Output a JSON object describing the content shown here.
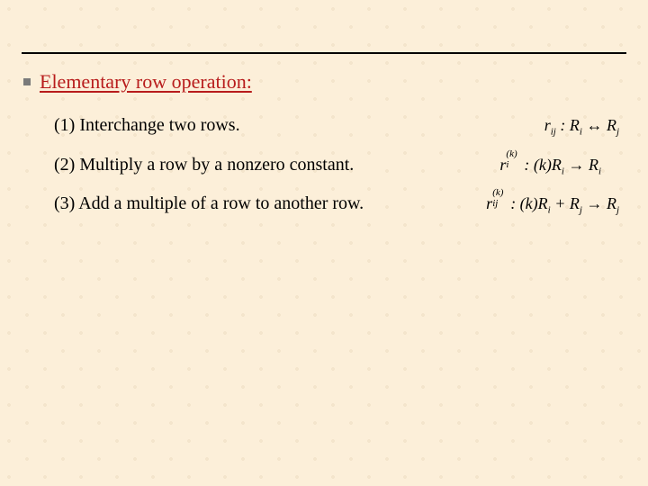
{
  "colors": {
    "background": "#fcefd9",
    "heading": "#b81c1c",
    "text": "#000000",
    "rule": "#000000",
    "bullet": "#7a7a7a"
  },
  "typography": {
    "font_family": "Times New Roman",
    "heading_fontsize_pt": 17,
    "body_fontsize_pt": 15,
    "formula_fontsize_pt": 14
  },
  "heading": "Elementary row operation:",
  "items": [
    {
      "text": "(1) Interchange two rows.",
      "formula_plain": "r_ij : R_i ↔ R_j"
    },
    {
      "text": "(2) Multiply a row by a nonzero constant.",
      "formula_plain": "r_i^(k) : (k)R_i → R_i"
    },
    {
      "text": "(3) Add a multiple of a row to another row.",
      "formula_plain": "r_ij^(k) : (k)R_i + R_j → R_j"
    }
  ]
}
